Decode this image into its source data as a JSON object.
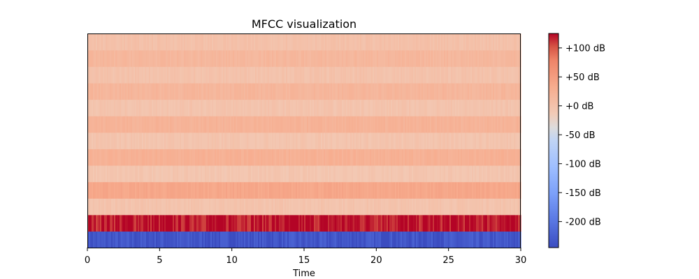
{
  "chart_data": {
    "type": "heatmap",
    "title": "MFCC visualization",
    "xlabel": "Time",
    "ylabel": "",
    "xlim": [
      0,
      30
    ],
    "x_ticks": [
      0,
      5,
      10,
      15,
      20,
      25,
      30
    ],
    "n_frames": 310,
    "rows_bottom_to_top": [
      {
        "coef": 0,
        "mean_db": -235
      },
      {
        "coef": 1,
        "mean_db": 120
      },
      {
        "coef": 2,
        "mean_db": -2
      },
      {
        "coef": 3,
        "mean_db": 38
      },
      {
        "coef": 4,
        "mean_db": -5
      },
      {
        "coef": 5,
        "mean_db": 25
      },
      {
        "coef": 6,
        "mean_db": -3
      },
      {
        "coef": 7,
        "mean_db": 22
      },
      {
        "coef": 8,
        "mean_db": -2
      },
      {
        "coef": 9,
        "mean_db": 18
      },
      {
        "coef": 10,
        "mean_db": 0
      },
      {
        "coef": 11,
        "mean_db": 16
      },
      {
        "coef": 12,
        "mean_db": 2
      }
    ],
    "colormap": "coolwarm",
    "colorbar": {
      "vmin": -245,
      "vmax": 125,
      "ticks": [
        100,
        50,
        0,
        -50,
        -100,
        -150,
        -200
      ],
      "tick_labels": [
        "+100 dB",
        "+50 dB",
        "+0 dB",
        "-50 dB",
        "-100 dB",
        "-150 dB",
        "-200 dB"
      ]
    },
    "grid": false,
    "legend": "colorbar-right"
  }
}
